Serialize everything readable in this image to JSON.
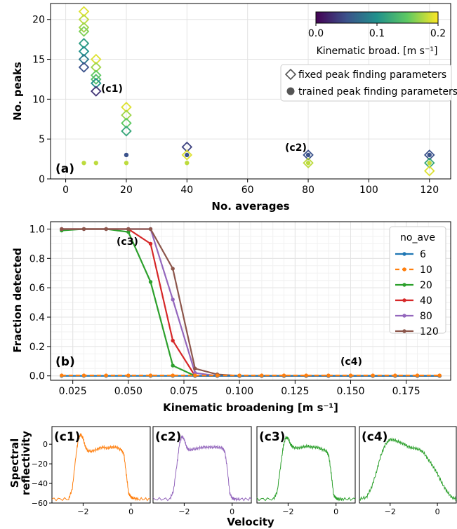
{
  "chart_data": [
    {
      "type": "scatter",
      "panel_label": "(a)",
      "xlabel": "No. averages",
      "ylabel": "No. peaks",
      "xlim": [
        -5,
        127
      ],
      "ylim": [
        0,
        22
      ],
      "xticks": [
        "0",
        "20",
        "40",
        "60",
        "80",
        "100",
        "120"
      ],
      "yticks": [
        "0",
        "5",
        "10",
        "15",
        "20"
      ],
      "colorbar": {
        "label": "Kinematic broad. [m s⁻¹]",
        "ticks": [
          "0.0",
          "0.1",
          "0.2"
        ],
        "range": [
          0,
          0.2
        ],
        "colormap": [
          "#440154",
          "#3b528b",
          "#21918c",
          "#5ec962",
          "#fde725"
        ]
      },
      "legend": {
        "position": "upper-right",
        "entries": [
          "fixed peak finding parameters",
          "trained peak finding parameters"
        ]
      },
      "annotations": [
        "(c1)",
        "(c2)"
      ],
      "series": [
        {
          "name": "fixed peak finding parameters",
          "marker": "diamond",
          "points": [
            [
              6,
              21,
              0.19
            ],
            [
              6,
              20,
              0.18
            ],
            [
              6,
              19,
              0.17
            ],
            [
              6,
              18.5,
              0.16
            ],
            [
              6,
              17,
              0.11
            ],
            [
              6,
              16,
              0.1
            ],
            [
              6,
              15,
              0.08
            ],
            [
              6,
              14,
              0.05
            ],
            [
              10,
              15,
              0.19
            ],
            [
              10,
              14,
              0.17
            ],
            [
              10,
              13,
              0.15
            ],
            [
              10,
              12.5,
              0.14
            ],
            [
              10,
              12,
              0.1
            ],
            [
              10,
              11,
              0.03
            ],
            [
              20,
              9,
              0.19
            ],
            [
              20,
              8,
              0.17
            ],
            [
              20,
              7,
              0.15
            ],
            [
              20,
              6,
              0.12
            ],
            [
              40,
              4,
              0.04
            ],
            [
              40,
              3,
              0.19
            ],
            [
              80,
              3,
              0.05
            ],
            [
              80,
              2,
              0.18
            ],
            [
              120,
              3,
              0.05
            ],
            [
              120,
              2,
              0.12
            ],
            [
              120,
              1,
              0.19
            ]
          ]
        },
        {
          "name": "trained peak finding parameters",
          "marker": "circle",
          "points": [
            [
              6,
              2,
              0.18
            ],
            [
              10,
              2,
              0.18
            ],
            [
              20,
              3,
              0.05
            ],
            [
              20,
              2,
              0.18
            ],
            [
              40,
              3,
              0.05
            ],
            [
              40,
              2,
              0.18
            ],
            [
              80,
              3,
              0.05
            ],
            [
              80,
              2,
              0.18
            ],
            [
              120,
              3,
              0.05
            ],
            [
              120,
              2,
              0.18
            ]
          ]
        }
      ]
    },
    {
      "type": "line",
      "panel_label": "(b)",
      "xlabel": "Kinematic broadening [m s⁻¹]",
      "ylabel": "Fraction detected",
      "xlim": [
        0.015,
        0.195
      ],
      "ylim": [
        -0.03,
        1.05
      ],
      "xticks": [
        "0.025",
        "0.050",
        "0.075",
        "0.100",
        "0.125",
        "0.150",
        "0.175"
      ],
      "yticks": [
        "0.0",
        "0.2",
        "0.4",
        "0.6",
        "0.8",
        "1.0"
      ],
      "legend": {
        "title": "no_ave",
        "position": "upper-right"
      },
      "annotations": [
        "(c3)",
        "(c4)"
      ],
      "x": [
        0.02,
        0.03,
        0.04,
        0.05,
        0.06,
        0.07,
        0.08,
        0.09,
        0.1,
        0.11,
        0.12,
        0.13,
        0.14,
        0.15,
        0.16,
        0.17,
        0.18,
        0.19
      ],
      "series": [
        {
          "name": "6",
          "color": "#1f77b4",
          "dashed": false,
          "values": [
            0,
            0,
            0,
            0,
            0,
            0,
            0,
            0,
            0,
            0,
            0,
            0,
            0,
            0,
            0,
            0,
            0,
            0
          ]
        },
        {
          "name": "10",
          "color": "#ff7f0e",
          "dashed": true,
          "values": [
            0.003,
            0.003,
            0.003,
            0.003,
            0.003,
            0.003,
            0.003,
            0.003,
            0.003,
            0.003,
            0.003,
            0.003,
            0.003,
            0.003,
            0.003,
            0.003,
            0.003,
            0.003
          ]
        },
        {
          "name": "20",
          "color": "#2ca02c",
          "dashed": false,
          "values": [
            0.99,
            1.0,
            1.0,
            0.98,
            0.64,
            0.07,
            0.0,
            0.0,
            0.0,
            0.0,
            0.0,
            0.0,
            0.0,
            0.0,
            0.0,
            0.0,
            0.0,
            0.0
          ]
        },
        {
          "name": "40",
          "color": "#d62728",
          "dashed": false,
          "values": [
            1.0,
            1.0,
            1.0,
            1.0,
            0.9,
            0.24,
            0.0,
            0.0,
            0.0,
            0.0,
            0.0,
            0.0,
            0.0,
            0.0,
            0.0,
            0.0,
            0.0,
            0.0
          ]
        },
        {
          "name": "80",
          "color": "#9467bd",
          "dashed": false,
          "values": [
            1.0,
            1.0,
            1.0,
            1.0,
            1.0,
            0.52,
            0.02,
            0.0,
            0.0,
            0.0,
            0.0,
            0.0,
            0.0,
            0.0,
            0.0,
            0.0,
            0.0,
            0.0
          ]
        },
        {
          "name": "120",
          "color": "#8c564b",
          "dashed": false,
          "values": [
            1.0,
            1.0,
            1.0,
            1.0,
            1.0,
            0.73,
            0.05,
            0.01,
            0.0,
            0.0,
            0.0,
            0.0,
            0.0,
            0.0,
            0.0,
            0.0,
            0.0,
            0.0
          ]
        }
      ]
    },
    {
      "type": "line",
      "ylabel": "Spectral\nreflectivity",
      "xlabel": "Velocity",
      "xlim": [
        -3.3,
        0.8
      ],
      "ylim": [
        -60,
        18
      ],
      "xticks": [
        "−2",
        "0"
      ],
      "yticks": [
        "0",
        "−20",
        "−40",
        "−60"
      ],
      "panels": [
        {
          "label": "(c1)",
          "color": "#ff7f0e",
          "x": [
            -3.3,
            -2.6,
            -2.45,
            -2.3,
            -2.2,
            -2.1,
            -2.0,
            -1.9,
            -1.8,
            -1.6,
            -1.4,
            -1.2,
            -1.0,
            -0.8,
            -0.6,
            -0.4,
            -0.3,
            -0.2,
            -0.1,
            0.0,
            0.1,
            0.3,
            0.8
          ],
          "y": [
            -56,
            -56,
            -45,
            -12,
            5,
            10,
            6,
            -3,
            -7,
            -7,
            -5,
            -3,
            -4,
            -3,
            -3,
            -6,
            -10,
            -30,
            -50,
            -54,
            -55,
            -56,
            -56
          ]
        },
        {
          "label": "(c2)",
          "color": "#9467bd",
          "x": [
            -3.3,
            -2.6,
            -2.45,
            -2.3,
            -2.2,
            -2.1,
            -2.0,
            -1.9,
            -1.8,
            -1.6,
            -1.4,
            -1.2,
            -1.0,
            -0.8,
            -0.6,
            -0.4,
            -0.3,
            -0.2,
            -0.1,
            0.0,
            0.1,
            0.3,
            0.8
          ],
          "y": [
            -56,
            -56,
            -48,
            -20,
            0,
            8,
            5,
            -3,
            -6,
            -5,
            -4,
            -3,
            -3,
            -3,
            -3,
            -4,
            -8,
            -25,
            -50,
            -55,
            -56,
            -56,
            -56
          ]
        },
        {
          "label": "(c3)",
          "color": "#2ca02c",
          "x": [
            -3.3,
            -2.6,
            -2.45,
            -2.3,
            -2.2,
            -2.1,
            -2.0,
            -1.9,
            -1.8,
            -1.6,
            -1.4,
            -1.2,
            -1.0,
            -0.8,
            -0.6,
            -0.4,
            -0.3,
            -0.2,
            -0.1,
            0.0,
            0.1,
            0.3,
            0.8
          ],
          "y": [
            -56,
            -56,
            -48,
            -20,
            -2,
            7,
            6,
            0,
            -3,
            -4,
            -3,
            -2,
            -3,
            -3,
            -5,
            -7,
            -12,
            -30,
            -52,
            -55,
            -56,
            -56,
            -56
          ]
        },
        {
          "label": "(c4)",
          "color": "#2ca02c",
          "x": [
            -3.3,
            -3.0,
            -2.8,
            -2.6,
            -2.4,
            -2.2,
            -2.0,
            -1.8,
            -1.6,
            -1.4,
            -1.2,
            -1.0,
            -0.8,
            -0.6,
            -0.4,
            -0.2,
            0.0,
            0.2,
            0.4,
            0.6,
            0.8
          ],
          "y": [
            -56,
            -54,
            -45,
            -30,
            -12,
            0,
            5,
            4,
            2,
            0,
            -3,
            -4,
            -5,
            -8,
            -15,
            -22,
            -30,
            -40,
            -48,
            -54,
            -56
          ]
        }
      ]
    }
  ]
}
